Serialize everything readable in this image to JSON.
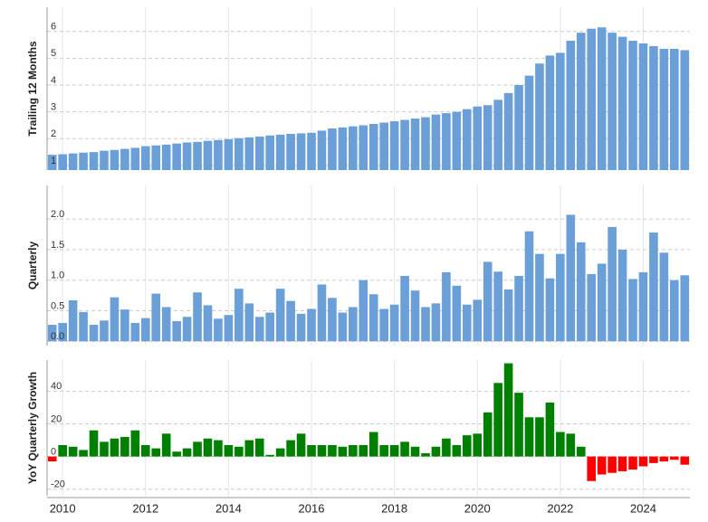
{
  "chart_data": [
    {
      "type": "bar",
      "ylabel": "Trailing 12 Months",
      "color": "#6a9fd8",
      "grid": true,
      "ylim": [
        0.83,
        6.9
      ],
      "yticks": [
        1,
        2,
        3,
        4,
        5,
        6
      ],
      "values": [
        1.4,
        1.42,
        1.45,
        1.48,
        1.5,
        1.55,
        1.58,
        1.62,
        1.66,
        1.72,
        1.75,
        1.78,
        1.82,
        1.86,
        1.88,
        1.92,
        1.95,
        1.98,
        2.02,
        2.05,
        2.08,
        2.12,
        2.15,
        2.18,
        2.2,
        2.22,
        2.3,
        2.38,
        2.42,
        2.46,
        2.5,
        2.55,
        2.6,
        2.65,
        2.7,
        2.75,
        2.8,
        2.9,
        2.95,
        3.0,
        3.1,
        3.2,
        3.25,
        3.45,
        3.7,
        4.0,
        4.35,
        4.8,
        5.1,
        5.2,
        5.65,
        5.95,
        6.1,
        6.15,
        5.95,
        5.8,
        5.65,
        5.55,
        5.45,
        5.35,
        5.35,
        5.3
      ]
    },
    {
      "type": "bar",
      "ylabel": "Quarterly",
      "color": "#6a9fd8",
      "grid": true,
      "ylim": [
        -0.07,
        2.55
      ],
      "yticks": [
        {
          "value": 0,
          "label": "0.0"
        },
        0.5,
        {
          "value": 1,
          "label": "1.0"
        },
        1.5,
        {
          "value": 2,
          "label": "2.0"
        }
      ],
      "values": [
        0.27,
        0.3,
        0.67,
        0.48,
        0.27,
        0.34,
        0.72,
        0.52,
        0.3,
        0.38,
        0.78,
        0.56,
        0.33,
        0.4,
        0.8,
        0.59,
        0.37,
        0.43,
        0.86,
        0.62,
        0.4,
        0.47,
        0.86,
        0.66,
        0.45,
        0.53,
        0.93,
        0.71,
        0.47,
        0.56,
        1.0,
        0.77,
        0.53,
        0.6,
        1.07,
        0.83,
        0.56,
        0.62,
        1.13,
        0.91,
        0.6,
        0.68,
        1.3,
        1.14,
        0.85,
        1.07,
        1.8,
        1.43,
        1.03,
        1.43,
        2.07,
        1.62,
        1.1,
        1.27,
        1.87,
        1.5,
        1.02,
        1.13,
        1.78,
        1.45,
        1.0,
        1.08
      ]
    },
    {
      "type": "bar",
      "ylabel": "YoY Quarterly Growth",
      "positive_color": "#008000",
      "negative_color": "#ff0000",
      "grid": true,
      "ylim": [
        -24,
        59
      ],
      "yticks": [
        -20,
        0,
        20,
        40
      ],
      "categories": [
        null,
        "2010",
        null,
        null,
        null,
        null,
        null,
        null,
        null,
        "2012",
        null,
        null,
        null,
        null,
        null,
        null,
        null,
        "2014",
        null,
        null,
        null,
        null,
        null,
        null,
        null,
        "2016",
        null,
        null,
        null,
        null,
        null,
        null,
        null,
        "2018",
        null,
        null,
        null,
        null,
        null,
        null,
        null,
        "2020",
        null,
        null,
        null,
        null,
        null,
        null,
        null,
        "2022",
        null,
        null,
        null,
        null,
        null,
        null,
        null,
        "2024",
        null,
        null,
        null,
        null
      ],
      "values": [
        -3,
        7,
        6,
        4,
        16,
        9,
        11,
        12,
        16,
        7,
        5,
        14,
        3,
        5,
        9,
        11,
        10,
        7,
        6,
        10,
        11,
        1,
        5,
        10,
        14,
        7,
        7,
        7,
        6,
        7,
        7,
        15,
        7,
        7,
        9,
        6,
        2,
        6,
        11,
        7,
        13,
        14,
        27,
        45,
        57,
        39,
        24,
        24,
        33,
        15,
        14,
        6,
        -15,
        -11,
        -10,
        -9,
        -8,
        -6,
        -4,
        -3,
        -2,
        -5
      ]
    }
  ]
}
